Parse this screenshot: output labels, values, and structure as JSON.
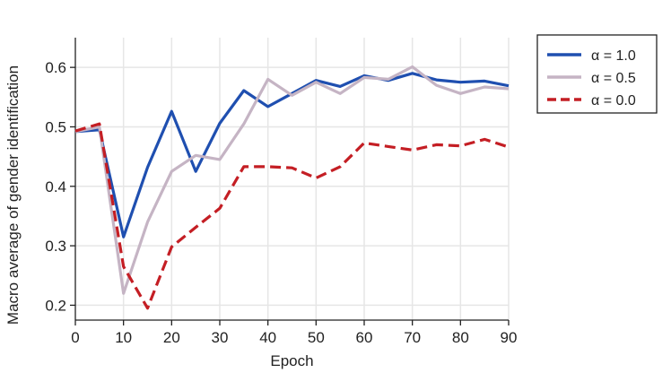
{
  "chart_data": {
    "type": "line",
    "xlabel": "Epoch",
    "ylabel": "Macro average of gender identification",
    "xlim": [
      0,
      90
    ],
    "ylim": [
      0.175,
      0.65
    ],
    "xticks": [
      0,
      10,
      20,
      30,
      40,
      50,
      60,
      70,
      80,
      90
    ],
    "xtick_labels": [
      "0",
      "10",
      "20",
      "30",
      "40",
      "50",
      "60",
      "70",
      "80",
      "90"
    ],
    "yticks": [
      0.2,
      0.3,
      0.4,
      0.5,
      0.6
    ],
    "ytick_labels": [
      "0.2",
      "0.3",
      "0.4",
      "0.5",
      "0.6"
    ],
    "grid": true,
    "legend_position": "outside-right-top",
    "x": [
      0,
      5,
      10,
      15,
      20,
      25,
      30,
      35,
      40,
      45,
      50,
      55,
      60,
      65,
      70,
      75,
      80,
      85,
      90
    ],
    "series": [
      {
        "name": "α = 1.0",
        "color": "#1f4fb0",
        "dash": "solid",
        "values": [
          0.492,
          0.495,
          0.315,
          0.432,
          0.526,
          0.425,
          0.506,
          0.561,
          0.534,
          0.556,
          0.578,
          0.568,
          0.586,
          0.578,
          0.59,
          0.579,
          0.575,
          0.577,
          0.569
        ]
      },
      {
        "name": "α = 0.5",
        "color": "#c5b4c4",
        "dash": "solid",
        "values": [
          0.492,
          0.5,
          0.22,
          0.34,
          0.425,
          0.452,
          0.445,
          0.505,
          0.58,
          0.553,
          0.575,
          0.556,
          0.583,
          0.58,
          0.601,
          0.57,
          0.556,
          0.567,
          0.564
        ]
      },
      {
        "name": "α = 0.0",
        "color": "#c41e24",
        "dash": "dashed",
        "values": [
          0.493,
          0.505,
          0.265,
          0.195,
          0.298,
          0.331,
          0.363,
          0.433,
          0.433,
          0.431,
          0.414,
          0.433,
          0.473,
          0.467,
          0.461,
          0.47,
          0.468,
          0.479,
          0.466
        ]
      }
    ]
  }
}
